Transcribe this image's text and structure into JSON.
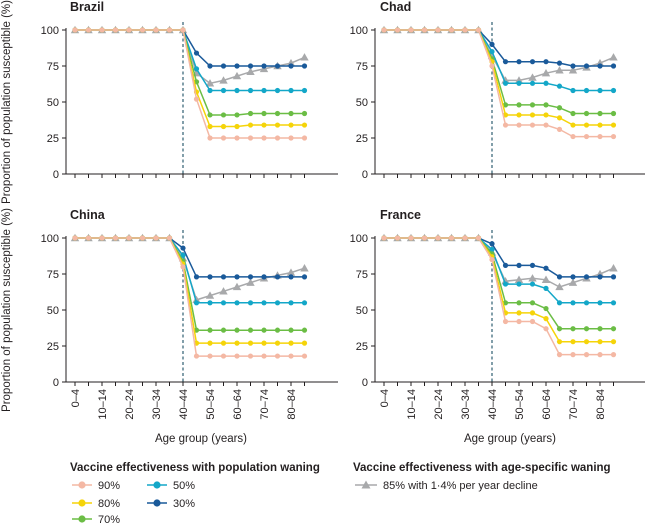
{
  "figure": {
    "legend": {
      "population_heading": "Vaccine effectiveness with population waning",
      "age_specific_heading": "Vaccine effectiveness with age-specific waning"
    }
  },
  "chart_data": [
    {
      "type": "line",
      "title": "Brazil",
      "xlabel": "Age group (years)",
      "ylabel": "Proportion of population susceptible (%)",
      "ylim": [
        0,
        100
      ],
      "yticks": [
        0,
        25,
        50,
        75,
        100
      ],
      "categories": [
        "0–4",
        "5–9",
        "10–14",
        "15–19",
        "20–24",
        "25–29",
        "30–34",
        "35–39",
        "40–44",
        "45–49",
        "50–54",
        "55–59",
        "60–64",
        "65–69",
        "70–74",
        "75–79",
        "80–84",
        "85+"
      ],
      "tick_labels": [
        "0–4",
        "10–14",
        "20–24",
        "30–34",
        "40–44",
        "50–54",
        "60–64",
        "70–74",
        "80–84"
      ],
      "vaccination_cutoff": "40–44",
      "series": [
        {
          "name": "90%",
          "values": [
            100,
            100,
            100,
            100,
            100,
            100,
            100,
            100,
            100,
            52,
            25,
            25,
            25,
            25,
            25,
            25,
            25,
            25
          ]
        },
        {
          "name": "80%",
          "values": [
            100,
            100,
            100,
            100,
            100,
            100,
            100,
            100,
            100,
            57,
            33,
            33,
            33,
            34,
            34,
            34,
            34,
            34
          ]
        },
        {
          "name": "70%",
          "values": [
            100,
            100,
            100,
            100,
            100,
            100,
            100,
            100,
            100,
            64,
            41,
            41,
            41,
            42,
            42,
            42,
            42,
            42
          ]
        },
        {
          "name": "50%",
          "values": [
            100,
            100,
            100,
            100,
            100,
            100,
            100,
            100,
            100,
            73,
            58,
            58,
            58,
            58,
            58,
            58,
            58,
            58
          ]
        },
        {
          "name": "30%",
          "values": [
            100,
            100,
            100,
            100,
            100,
            100,
            100,
            100,
            100,
            84,
            75,
            75,
            75,
            75,
            75,
            75,
            75,
            75
          ]
        },
        {
          "name": "85% with 1·4% per year decline",
          "values": [
            100,
            100,
            100,
            100,
            100,
            100,
            100,
            100,
            100,
            70,
            63,
            65,
            68,
            71,
            73,
            75,
            77,
            81
          ]
        }
      ]
    },
    {
      "type": "line",
      "title": "Chad",
      "xlabel": "Age group (years)",
      "ylabel": "Proportion of population susceptible (%)",
      "ylim": [
        0,
        100
      ],
      "yticks": [
        0,
        25,
        50,
        75,
        100
      ],
      "categories": [
        "0–4",
        "5–9",
        "10–14",
        "15–19",
        "20–24",
        "25–29",
        "30–34",
        "35–39",
        "40–44",
        "45–49",
        "50–54",
        "55–59",
        "60–64",
        "65–69",
        "70–74",
        "75–79",
        "80–84",
        "85+"
      ],
      "tick_labels": [
        "0–4",
        "10–14",
        "20–24",
        "30–34",
        "40–44",
        "50–54",
        "60–64",
        "70–74",
        "80–84"
      ],
      "vaccination_cutoff": "40–44",
      "series": [
        {
          "name": "90%",
          "values": [
            100,
            100,
            100,
            100,
            100,
            100,
            100,
            100,
            75,
            34,
            34,
            34,
            34,
            31,
            26,
            26,
            26,
            26
          ]
        },
        {
          "name": "80%",
          "values": [
            100,
            100,
            100,
            100,
            100,
            100,
            100,
            100,
            78,
            41,
            41,
            41,
            41,
            39,
            34,
            34,
            34,
            34
          ]
        },
        {
          "name": "70%",
          "values": [
            100,
            100,
            100,
            100,
            100,
            100,
            100,
            100,
            80,
            48,
            48,
            48,
            48,
            46,
            42,
            42,
            42,
            42
          ]
        },
        {
          "name": "50%",
          "values": [
            100,
            100,
            100,
            100,
            100,
            100,
            100,
            100,
            85,
            63,
            63,
            63,
            63,
            61,
            58,
            58,
            58,
            58
          ]
        },
        {
          "name": "30%",
          "values": [
            100,
            100,
            100,
            100,
            100,
            100,
            100,
            100,
            90,
            78,
            78,
            78,
            78,
            77,
            75,
            75,
            75,
            75
          ]
        },
        {
          "name": "85% with 1·4% per year decline",
          "values": [
            100,
            100,
            100,
            100,
            100,
            100,
            100,
            100,
            82,
            65,
            65,
            67,
            70,
            72,
            72,
            74,
            77,
            81
          ]
        }
      ]
    },
    {
      "type": "line",
      "title": "China",
      "xlabel": "Age group (years)",
      "ylabel": "Proportion of population susceptible (%)",
      "ylim": [
        0,
        100
      ],
      "yticks": [
        0,
        25,
        50,
        75,
        100
      ],
      "categories": [
        "0–4",
        "5–9",
        "10–14",
        "15–19",
        "20–24",
        "25–29",
        "30–34",
        "35–39",
        "40–44",
        "45–49",
        "50–54",
        "55–59",
        "60–64",
        "65–69",
        "70–74",
        "75–79",
        "80–84",
        "85+"
      ],
      "tick_labels": [
        "0–4",
        "10–14",
        "20–24",
        "30–34",
        "40–44",
        "50–54",
        "60–64",
        "70–74",
        "80–84"
      ],
      "vaccination_cutoff": "40–44",
      "series": [
        {
          "name": "90%",
          "values": [
            100,
            100,
            100,
            100,
            100,
            100,
            100,
            100,
            80,
            18,
            18,
            18,
            18,
            18,
            18,
            18,
            18,
            18
          ]
        },
        {
          "name": "80%",
          "values": [
            100,
            100,
            100,
            100,
            100,
            100,
            100,
            100,
            82,
            27,
            27,
            27,
            27,
            27,
            27,
            27,
            27,
            27
          ]
        },
        {
          "name": "70%",
          "values": [
            100,
            100,
            100,
            100,
            100,
            100,
            100,
            100,
            84,
            36,
            36,
            36,
            36,
            36,
            36,
            36,
            36,
            36
          ]
        },
        {
          "name": "50%",
          "values": [
            100,
            100,
            100,
            100,
            100,
            100,
            100,
            100,
            88,
            55,
            55,
            55,
            55,
            55,
            55,
            55,
            55,
            55
          ]
        },
        {
          "name": "30%",
          "values": [
            100,
            100,
            100,
            100,
            100,
            100,
            100,
            100,
            93,
            73,
            73,
            73,
            73,
            73,
            73,
            73,
            73,
            73
          ]
        },
        {
          "name": "85% with 1·4% per year decline",
          "values": [
            100,
            100,
            100,
            100,
            100,
            100,
            100,
            100,
            86,
            57,
            60,
            63,
            66,
            69,
            72,
            74,
            76,
            79
          ]
        }
      ]
    },
    {
      "type": "line",
      "title": "France",
      "xlabel": "Age group (years)",
      "ylabel": "Proportion of population susceptible (%)",
      "ylim": [
        0,
        100
      ],
      "yticks": [
        0,
        25,
        50,
        75,
        100
      ],
      "categories": [
        "0–4",
        "5–9",
        "10–14",
        "15–19",
        "20–24",
        "25–29",
        "30–34",
        "35–39",
        "40–44",
        "45–49",
        "50–54",
        "55–59",
        "60–64",
        "65–69",
        "70–74",
        "75–79",
        "80–84",
        "85+"
      ],
      "tick_labels": [
        "0–4",
        "10–14",
        "20–24",
        "30–34",
        "40–44",
        "50–54",
        "60–64",
        "70–74",
        "80–84"
      ],
      "vaccination_cutoff": "40–44",
      "series": [
        {
          "name": "90%",
          "values": [
            100,
            100,
            100,
            100,
            100,
            100,
            100,
            100,
            85,
            42,
            42,
            42,
            37,
            19,
            19,
            19,
            19,
            19
          ]
        },
        {
          "name": "80%",
          "values": [
            100,
            100,
            100,
            100,
            100,
            100,
            100,
            100,
            87,
            48,
            48,
            48,
            44,
            28,
            28,
            28,
            28,
            28
          ]
        },
        {
          "name": "70%",
          "values": [
            100,
            100,
            100,
            100,
            100,
            100,
            100,
            100,
            89,
            55,
            55,
            55,
            51,
            37,
            37,
            37,
            37,
            37
          ]
        },
        {
          "name": "50%",
          "values": [
            100,
            100,
            100,
            100,
            100,
            100,
            100,
            100,
            92,
            68,
            68,
            68,
            65,
            55,
            55,
            55,
            55,
            55
          ]
        },
        {
          "name": "30%",
          "values": [
            100,
            100,
            100,
            100,
            100,
            100,
            100,
            100,
            96,
            81,
            81,
            81,
            79,
            73,
            73,
            73,
            73,
            73
          ]
        },
        {
          "name": "85% with 1·4% per year decline",
          "values": [
            100,
            100,
            100,
            100,
            100,
            100,
            100,
            100,
            90,
            70,
            71,
            72,
            71,
            66,
            69,
            72,
            75,
            79
          ]
        }
      ]
    }
  ],
  "series_style": {
    "90%": {
      "color": "#f4b8a4",
      "marker": "circle"
    },
    "80%": {
      "color": "#f5d409",
      "marker": "circle"
    },
    "70%": {
      "color": "#6bbd45",
      "marker": "circle"
    },
    "50%": {
      "color": "#13a7c8",
      "marker": "circle"
    },
    "30%": {
      "color": "#1a5a9a",
      "marker": "circle"
    },
    "85% with 1·4% per year decline": {
      "color": "#a8a9ab",
      "marker": "triangle"
    },
    "axis_color": "#231f20",
    "cutoff_line_color": "#2f5f72"
  }
}
